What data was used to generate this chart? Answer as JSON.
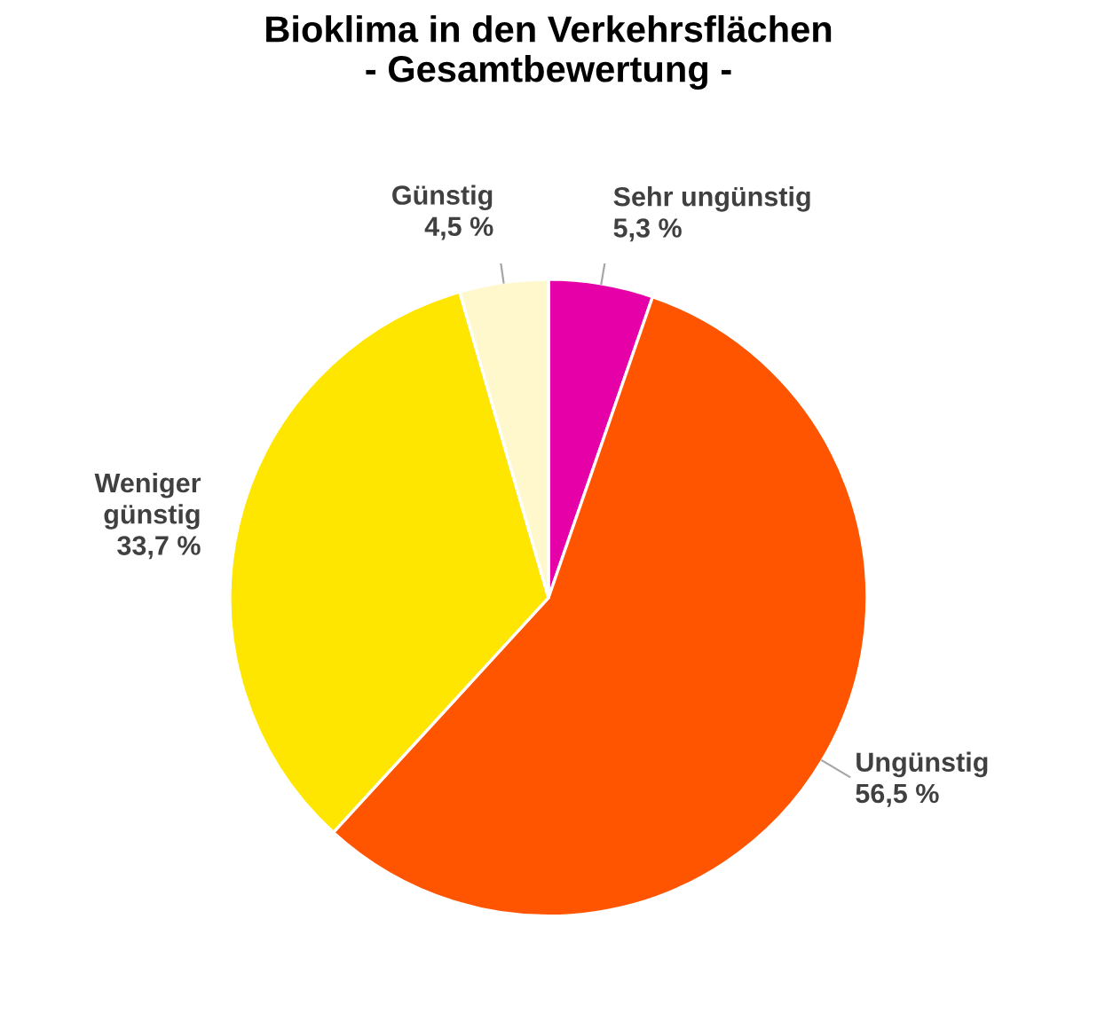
{
  "chart_data": {
    "type": "pie",
    "title": "Bioklima in den Verkehrsflächen\n- Gesamtbewertung -",
    "categories": [
      "Sehr ungünstig",
      "Ungünstig",
      "Weniger günstig",
      "Günstig"
    ],
    "values": [
      5.3,
      56.5,
      33.7,
      4.5
    ],
    "colors": [
      "#e600a8",
      "#ff5500",
      "#ffe600",
      "#fff8cc"
    ],
    "value_labels": [
      "5,3 %",
      "56,5 %",
      "33,7 %",
      "4,5 %"
    ],
    "legend": false
  }
}
